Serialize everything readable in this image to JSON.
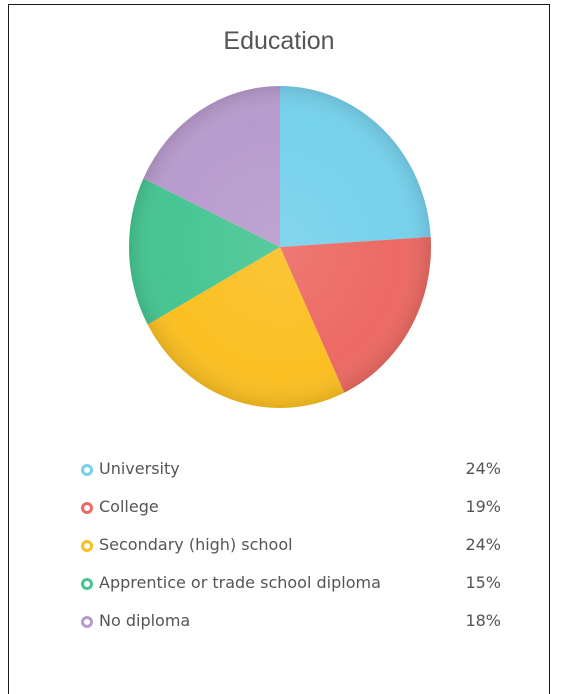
{
  "chart_data": {
    "type": "pie",
    "title": "Education",
    "categories": [
      "University",
      "College",
      "Secondary (high) school",
      "Apprentice or trade school diploma",
      "No diploma"
    ],
    "values": [
      24,
      19,
      24,
      15,
      18
    ],
    "value_labels": [
      "24%",
      "19%",
      "24%",
      "15%",
      "18%"
    ],
    "colors": [
      "#76d1ec",
      "#ec6a63",
      "#fbbf22",
      "#46c592",
      "#b89bcd"
    ],
    "start_angle_deg": 0,
    "direction": "clockwise",
    "legend_position": "bottom"
  }
}
